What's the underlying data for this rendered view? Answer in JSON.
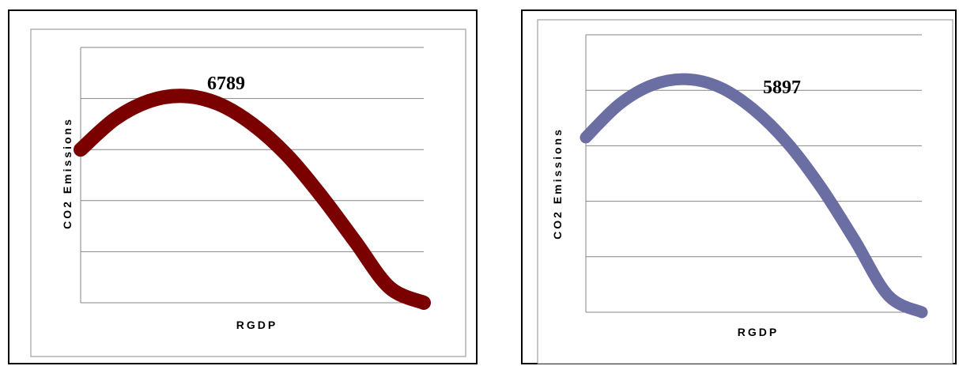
{
  "chart_data": [
    {
      "type": "line",
      "title": "",
      "xlabel": "RGDP",
      "ylabel": "CO2 Emissions",
      "color": "#7b0000",
      "grid": true,
      "x": [
        0,
        1,
        2,
        3,
        4,
        5,
        6,
        7,
        8,
        9,
        10
      ],
      "series": [
        {
          "values": [
            3.0,
            3.6,
            3.95,
            4.05,
            3.9,
            3.5,
            2.9,
            2.1,
            1.2,
            0.3,
            0.0
          ]
        }
      ],
      "annotations": [
        {
          "text": "6789",
          "x": 3,
          "y": 4.05
        }
      ]
    },
    {
      "type": "line",
      "title": "",
      "xlabel": "RGDP",
      "ylabel": "CO2 Emissions",
      "color": "#6a6ea3",
      "grid": true,
      "x": [
        0,
        1,
        2,
        3,
        4,
        5,
        6,
        7,
        8,
        9,
        10
      ],
      "series": [
        {
          "values": [
            3.15,
            3.75,
            4.1,
            4.2,
            4.05,
            3.65,
            3.05,
            2.25,
            1.3,
            0.3,
            0.0
          ]
        }
      ],
      "annotations": [
        {
          "text": "5897",
          "x": 3,
          "y": 4.2
        }
      ]
    }
  ]
}
